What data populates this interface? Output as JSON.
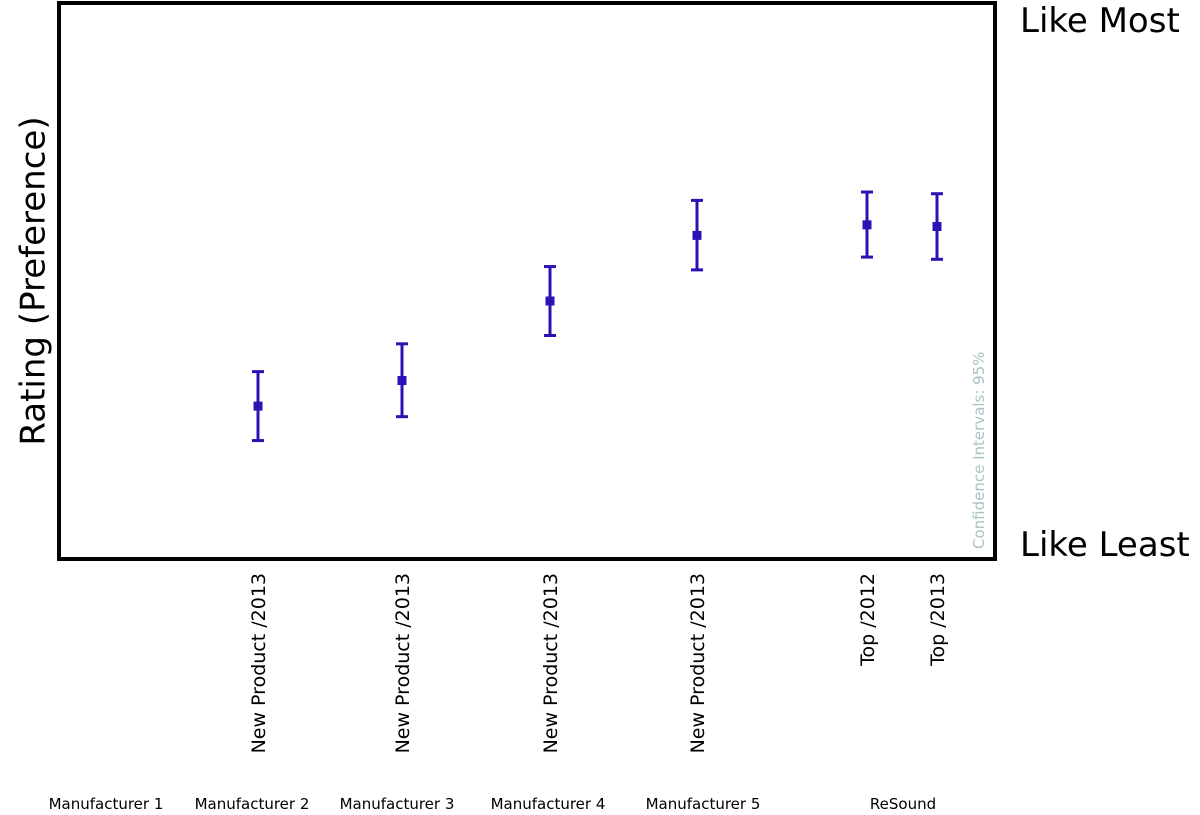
{
  "chart_data": {
    "type": "errorbar",
    "ylabel": "Rating (Preference)",
    "y_top_label": "Like Most",
    "y_bottom_label": "Like Least",
    "note": "Confidence Intervals: 95%",
    "ylim": [
      0,
      100
    ],
    "grid": false,
    "series_color": "#2a13b5",
    "categories": [
      "New Product /2013",
      "New Product /2013",
      "New Product /2013",
      "New Product /2013",
      "Top /2012",
      "Top /2013"
    ],
    "groups": [
      "Manufacturer 1",
      "Manufacturer 2",
      "Manufacturer 3",
      "Manufacturer 4",
      "Manufacturer 5",
      "ReSound"
    ],
    "category_group": [
      1,
      2,
      3,
      4,
      5,
      5
    ],
    "values": [
      27.5,
      32.1,
      46.4,
      58.2,
      60.1,
      59.8
    ],
    "lower": [
      21.3,
      25.6,
      40.2,
      52.0,
      54.3,
      53.9
    ],
    "upper": [
      33.7,
      38.7,
      52.6,
      64.5,
      66.0,
      65.7
    ]
  }
}
